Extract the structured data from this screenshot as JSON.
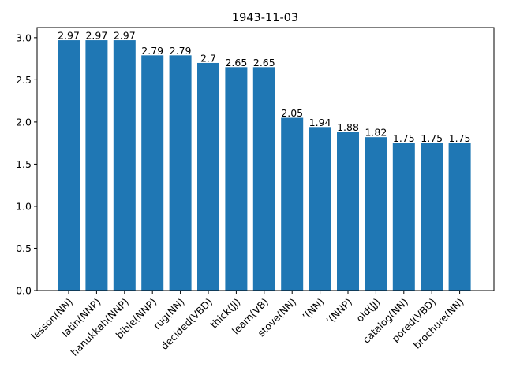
{
  "chart_data": {
    "type": "bar",
    "title": "1943-11-03",
    "xlabel": "",
    "ylabel": "",
    "categories": [
      "lesson(NN)",
      "latin(NNP)",
      "hanukkah(NNP)",
      "bible(NNP)",
      "rug(NN)",
      "decided(VBD)",
      "thick(JJ)",
      "learn(VB)",
      "stove(NN)",
      "’(NN)",
      "’(NNP)",
      "old(JJ)",
      "catalog(NN)",
      "pored(VBD)",
      "brochure(NN)"
    ],
    "values": [
      2.97,
      2.97,
      2.97,
      2.79,
      2.79,
      2.7,
      2.65,
      2.65,
      2.05,
      1.94,
      1.88,
      1.82,
      1.75,
      1.75,
      1.75
    ],
    "data_labels": [
      "2.97",
      "2.97",
      "2.97",
      "2.79",
      "2.79",
      "2.7",
      "2.65",
      "2.65",
      "2.05",
      "1.94",
      "1.88",
      "1.82",
      "1.75",
      "1.75",
      "1.75"
    ],
    "ylim": [
      0,
      3.12
    ],
    "yticks": [
      0.0,
      0.5,
      1.0,
      1.5,
      2.0,
      2.5,
      3.0
    ],
    "ytick_labels": [
      "0.0",
      "0.5",
      "1.0",
      "1.5",
      "2.0",
      "2.5",
      "3.0"
    ],
    "bar_color": "#1f77b4",
    "grid": false,
    "legend": "none"
  }
}
